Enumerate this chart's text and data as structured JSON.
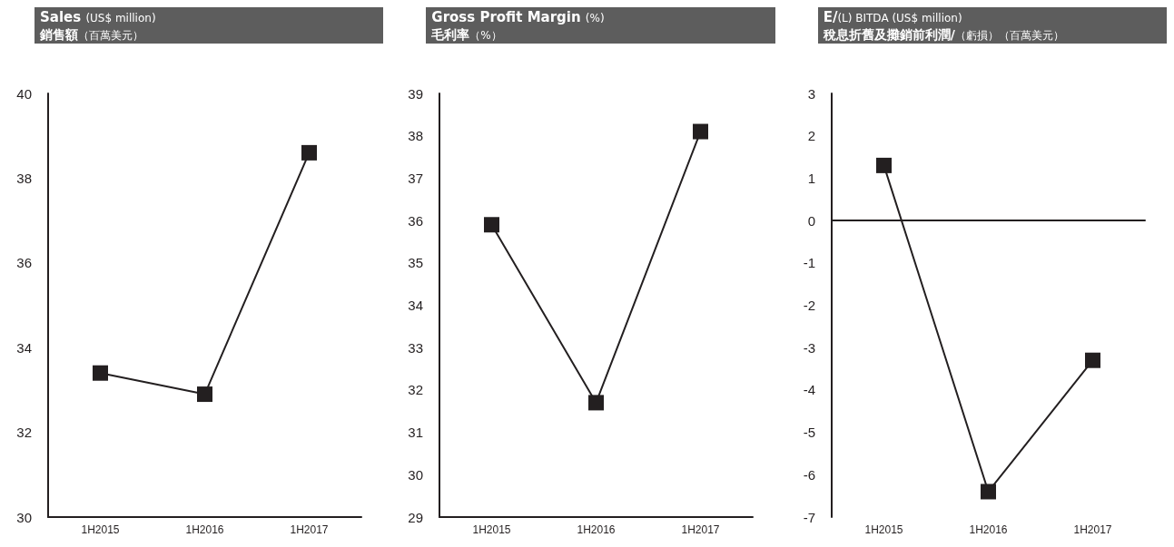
{
  "chart_data": [
    {
      "type": "line",
      "title": "Sales (US$ million)",
      "subtitle": "銷售額（百萬美元）",
      "categories": [
        "1H2015",
        "1H2016",
        "1H2017"
      ],
      "values": [
        33.4,
        32.9,
        38.6
      ],
      "color": "#231f20",
      "marker": "square",
      "ylim": [
        30,
        40
      ],
      "yticks": [
        30,
        32,
        34,
        36,
        38,
        40
      ]
    },
    {
      "type": "line",
      "title": "Gross Profit Margin (%)",
      "subtitle": "毛利率（%）",
      "categories": [
        "1H2015",
        "1H2016",
        "1H2017"
      ],
      "values": [
        35.9,
        31.7,
        38.1
      ],
      "color": "#231f20",
      "marker": "square",
      "ylim": [
        29,
        39
      ],
      "yticks": [
        29,
        30,
        31,
        32,
        33,
        34,
        35,
        36,
        37,
        38,
        39
      ]
    },
    {
      "type": "line",
      "title": "E/(L) BITDA (US$ million)",
      "subtitle": "稅息折舊及攤銷前利潤/（虧損）（百萬美元）",
      "categories": [
        "1H2015",
        "1H2016",
        "1H2017"
      ],
      "values": [
        1.3,
        -6.4,
        -3.3
      ],
      "color": "#231f20",
      "marker": "square",
      "ylim": [
        -7,
        3
      ],
      "yticks": [
        -7,
        -6,
        -5,
        -4,
        -3,
        -2,
        -1,
        0,
        1,
        2,
        3
      ]
    }
  ]
}
